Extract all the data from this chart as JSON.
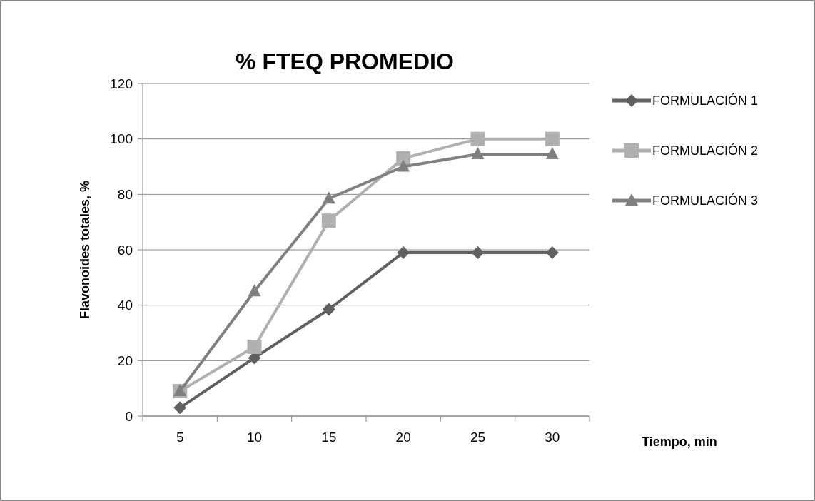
{
  "chart_data": {
    "type": "line",
    "title": "% FTEQ PROMEDIO",
    "xlabel": "Tiempo, min",
    "ylabel": "Flavonoides totales, %",
    "categories": [
      "5",
      "10",
      "15",
      "20",
      "25",
      "30"
    ],
    "series": [
      {
        "name": "FORMULACIÓN 1",
        "color": "#606060",
        "marker": "diamond",
        "values": [
          3,
          21,
          38.5,
          59,
          59,
          59
        ]
      },
      {
        "name": "FORMULACIÓN 2",
        "color": "#b0b0b0",
        "marker": "square",
        "values": [
          9,
          25,
          70.5,
          93,
          100,
          100
        ]
      },
      {
        "name": "FORMULACIÓN 3",
        "color": "#808080",
        "marker": "triangle",
        "values": [
          9,
          45,
          78.5,
          90,
          94.5,
          94.5
        ]
      }
    ],
    "ylim": [
      0,
      120
    ],
    "yticks": [
      0,
      20,
      40,
      60,
      80,
      100,
      120
    ],
    "grid": "y",
    "legend": "right",
    "line_style": "solid"
  }
}
